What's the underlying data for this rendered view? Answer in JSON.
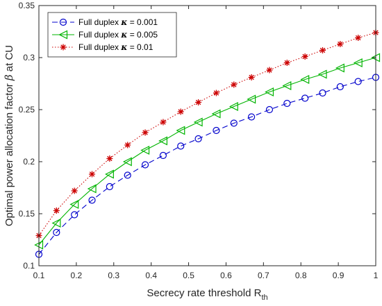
{
  "chart_data": {
    "type": "line",
    "xlabel": "Secrecy rate threshold R",
    "xlabel_sub": "th",
    "ylabel": "Optimal power allocation factor",
    "ylabel_symbol": "β",
    "ylabel_suffix": "at CU",
    "xlim": [
      0.1,
      1
    ],
    "ylim": [
      0.1,
      0.35
    ],
    "xticks": [
      "0.1",
      "0.2",
      "0.3",
      "0.4",
      "0.5",
      "0.6",
      "0.7",
      "0.8",
      "0.9",
      "1"
    ],
    "yticks": [
      "0.1",
      "0.15",
      "0.2",
      "0.25",
      "0.3",
      "0.35"
    ],
    "grid": false,
    "legend_position": "top-left",
    "x": [
      0.1,
      0.147,
      0.195,
      0.242,
      0.289,
      0.337,
      0.384,
      0.432,
      0.479,
      0.526,
      0.574,
      0.621,
      0.668,
      0.716,
      0.763,
      0.811,
      0.858,
      0.905,
      0.953,
      1.0
    ],
    "series": [
      {
        "name_prefix": "Full duplex",
        "name_symbol": "κ",
        "name_suffix": "= 0.001",
        "color": "#0000cc",
        "line_style": "dashed",
        "marker": "circle",
        "values": [
          0.111,
          0.132,
          0.149,
          0.163,
          0.176,
          0.187,
          0.197,
          0.206,
          0.215,
          0.222,
          0.23,
          0.237,
          0.243,
          0.25,
          0.256,
          0.261,
          0.266,
          0.272,
          0.277,
          0.281
        ]
      },
      {
        "name_prefix": "Full duplex",
        "name_symbol": "κ",
        "name_suffix": "= 0.005",
        "color": "#00b400",
        "line_style": "solid",
        "marker": "triangle-left",
        "values": [
          0.12,
          0.141,
          0.159,
          0.174,
          0.188,
          0.2,
          0.211,
          0.22,
          0.23,
          0.238,
          0.246,
          0.253,
          0.26,
          0.267,
          0.273,
          0.279,
          0.284,
          0.29,
          0.295,
          0.3
        ]
      },
      {
        "name_prefix": "Full duplex",
        "name_symbol": "κ",
        "name_suffix": "= 0.01",
        "color": "#cc0000",
        "line_style": "dotted",
        "marker": "asterisk",
        "values": [
          0.129,
          0.153,
          0.172,
          0.188,
          0.203,
          0.216,
          0.228,
          0.238,
          0.248,
          0.257,
          0.266,
          0.274,
          0.281,
          0.288,
          0.295,
          0.301,
          0.307,
          0.313,
          0.319,
          0.324
        ]
      }
    ]
  }
}
